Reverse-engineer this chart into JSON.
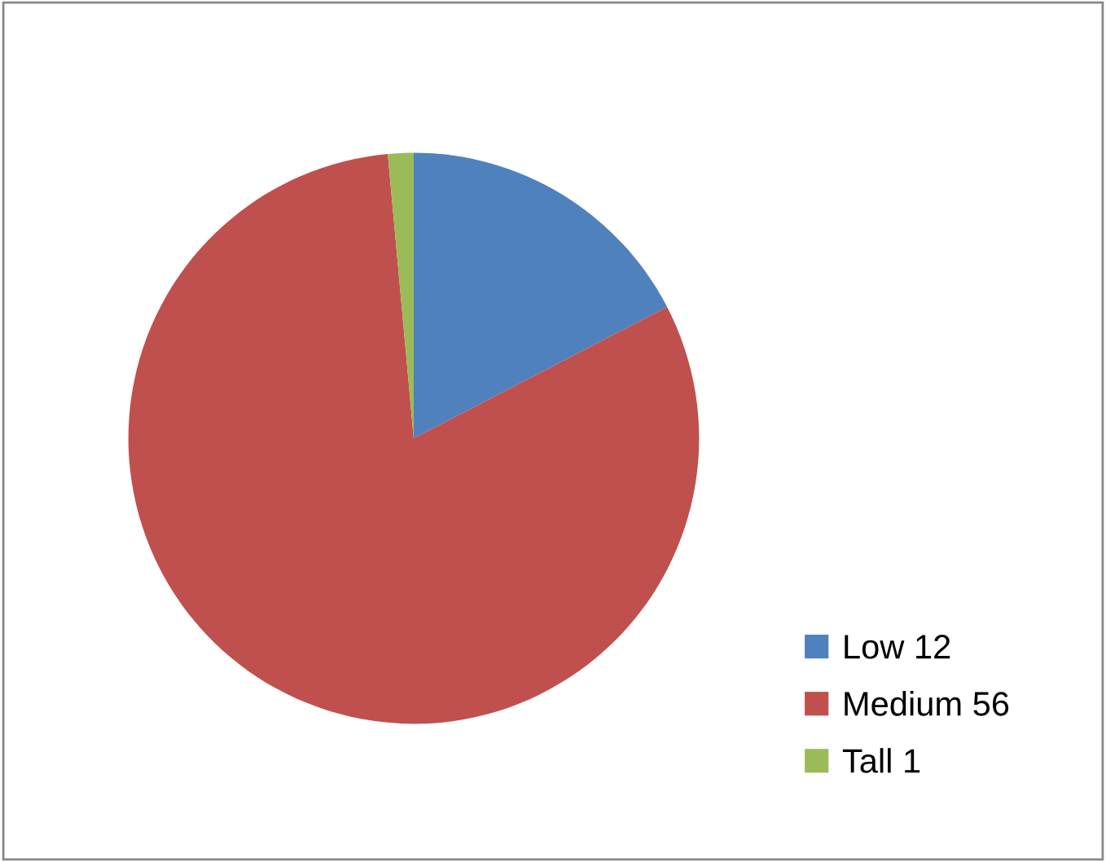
{
  "chart_data": {
    "type": "pie",
    "categories": [
      "Low 12",
      "Medium 56",
      "Tall 1"
    ],
    "values": [
      12,
      56,
      1
    ],
    "colors": [
      "#4f81bd",
      "#c0504d",
      "#9bbb59"
    ],
    "legend": "right"
  }
}
